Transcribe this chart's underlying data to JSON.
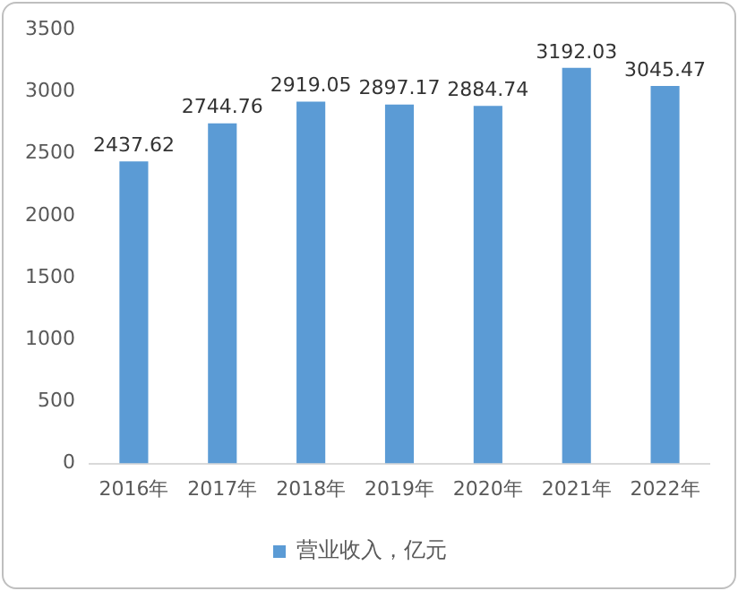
{
  "chart_data": {
    "type": "bar",
    "categories": [
      "2016年",
      "2017年",
      "2018年",
      "2019年",
      "2020年",
      "2021年",
      "2022年"
    ],
    "series": [
      {
        "name": "营业收入，亿元",
        "color": "#5b9bd5",
        "values": [
          2437.62,
          2744.76,
          2919.05,
          2897.17,
          2884.74,
          3192.03,
          3045.47
        ]
      }
    ],
    "ylim": [
      0,
      3500
    ],
    "yticks": [
      0,
      500,
      1000,
      1500,
      2000,
      2500,
      3000,
      3500
    ],
    "grid": false,
    "legend": "bottom",
    "data_labels": true
  }
}
